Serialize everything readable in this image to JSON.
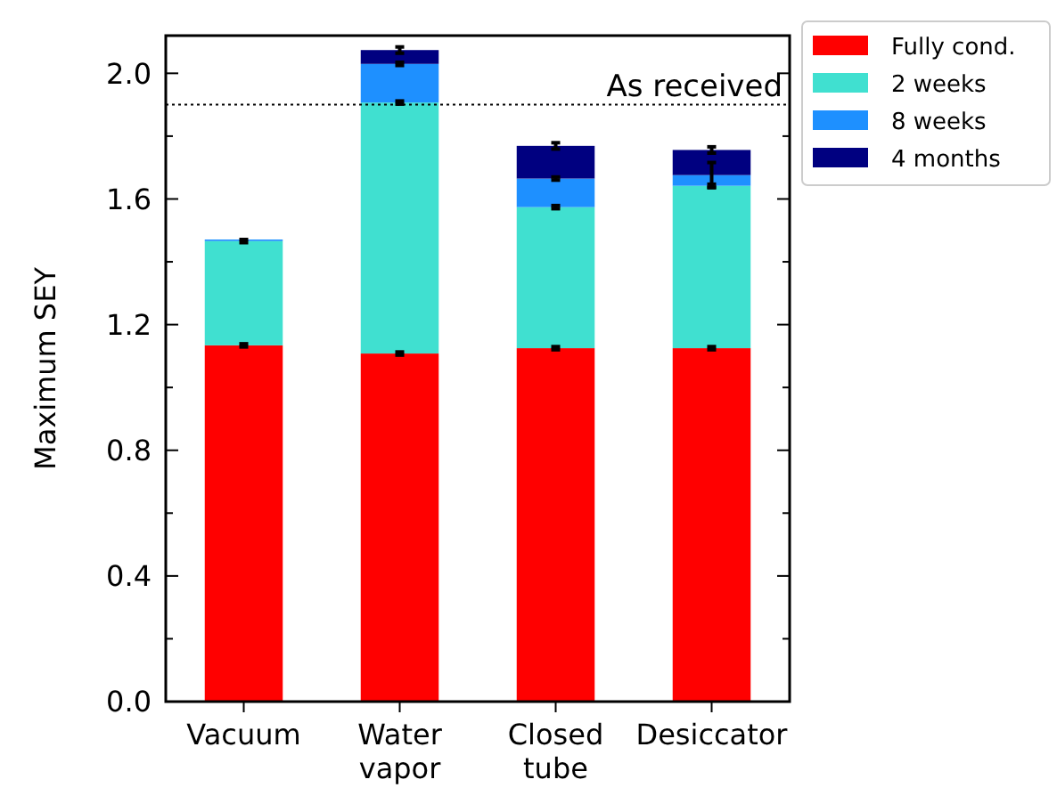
{
  "chart_data": {
    "type": "bar",
    "stacked": true,
    "ylabel": "Maximum SEY",
    "categories": [
      "Vacuum",
      "Water\nvapor",
      "Closed\ntube",
      "Desiccator"
    ],
    "series": [
      {
        "name": "Fully cond.",
        "color": "#ff0000",
        "values": [
          1.134,
          1.108,
          1.125,
          1.125
        ],
        "errors": [
          0.005,
          0.005,
          0.005,
          0.005
        ]
      },
      {
        "name": "2 weeks",
        "color": "#40e0d0",
        "values": [
          0.332,
          0.799,
          0.449,
          0.517
        ],
        "errors": [
          0.005,
          0.005,
          0.005,
          0.005
        ]
      },
      {
        "name": "8 weeks",
        "color": "#1e90ff",
        "values": [
          0.005,
          0.123,
          0.091,
          0.034
        ],
        "errors": [
          null,
          0.005,
          0.005,
          0.04
        ]
      },
      {
        "name": "4 months",
        "color": "#000080",
        "values": [
          0,
          0.044,
          0.104,
          0.08
        ],
        "errors": [
          null,
          0.01,
          0.01,
          0.01
        ]
      }
    ],
    "ylim": [
      0,
      2.12
    ],
    "yticks": [
      {
        "value": 0,
        "label": "0.0"
      },
      {
        "value": 0.2,
        "label": null
      },
      0.4,
      {
        "value": 0.6,
        "label": null
      },
      0.8,
      {
        "value": 1.0,
        "label": null
      },
      1.2,
      {
        "value": 1.4,
        "label": null
      },
      1.6,
      {
        "value": 1.8,
        "label": null
      },
      {
        "value": 2,
        "label": "2.0"
      }
    ],
    "ref_lines": [
      {
        "axis": "y",
        "value": 1.9,
        "label": "As received",
        "line_style": "dotted",
        "color": "#000000"
      }
    ],
    "legend": "top right"
  }
}
